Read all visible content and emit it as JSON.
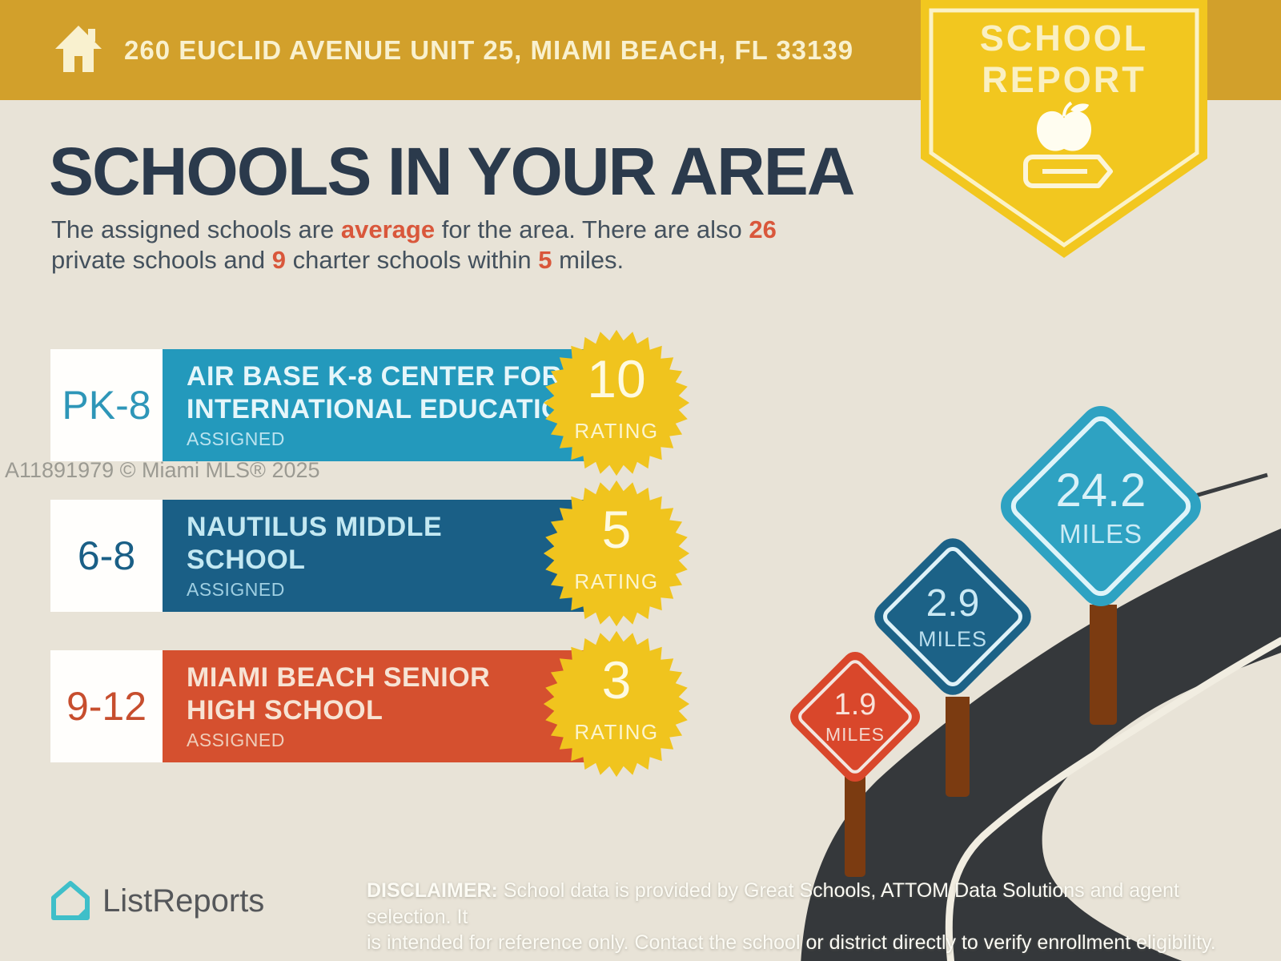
{
  "header": {
    "address": "260 EUCLID AVENUE UNIT 25, MIAMI BEACH, FL 33139"
  },
  "report_badge": {
    "line1": "SCHOOL",
    "line2": "REPORT"
  },
  "main": {
    "title": "SCHOOLS IN YOUR AREA",
    "intro": {
      "t1": "The assigned schools are ",
      "h1": "average",
      "t2": " for the area. There are also ",
      "h2": "26",
      "t3": "private schools and ",
      "h3": "9",
      "t4": " charter schools within ",
      "h4": "5",
      "t5": " miles."
    }
  },
  "schools": [
    {
      "grades": "PK-8",
      "name_line1": "AIR BASE K-8 CENTER FOR",
      "name_line2": "INTERNATIONAL EDUCATION",
      "status": "ASSIGNED",
      "rating": "10",
      "rating_label": "RATING",
      "color": "#2399BC"
    },
    {
      "grades": "6-8",
      "name_line1": "NAUTILUS MIDDLE",
      "name_line2": "SCHOOL",
      "status": "ASSIGNED",
      "rating": "5",
      "rating_label": "RATING",
      "color": "#1A5F86"
    },
    {
      "grades": "9-12",
      "name_line1": "MIAMI BEACH SENIOR",
      "name_line2": "HIGH SCHOOL",
      "status": "ASSIGNED",
      "rating": "3",
      "rating_label": "RATING",
      "color": "#D5502F"
    }
  ],
  "distance_signs": [
    {
      "distance": "1.9",
      "unit": "MILES",
      "color": "#D9472B"
    },
    {
      "distance": "2.9",
      "unit": "MILES",
      "color": "#1C6287"
    },
    {
      "distance": "24.2",
      "unit": "MILES",
      "color": "#2EA2C2"
    }
  ],
  "watermark": "A11891979 © Miami MLS® 2025",
  "footer": {
    "brand": "ListReports",
    "disclaimer_label": "DISCLAIMER:",
    "disclaimer_line1": " School data is provided by Great Schools, ATTOM Data Solutions and agent selection. It",
    "disclaimer_line2": "is intended for reference only. Contact the school or district directly to verify enrollment eligibility."
  },
  "colors": {
    "header_gold": "#D2A02B",
    "badge_yellow": "#F2C71F",
    "background_beige": "#E8E3D7",
    "heading_navy": "#2B3A4C",
    "accent_orange": "#D9573B",
    "starburst_yellow": "#F0C41E",
    "road_asphalt": "#35383B",
    "post_brown": "#7B3B11",
    "brand_teal": "#3FBFC9"
  }
}
